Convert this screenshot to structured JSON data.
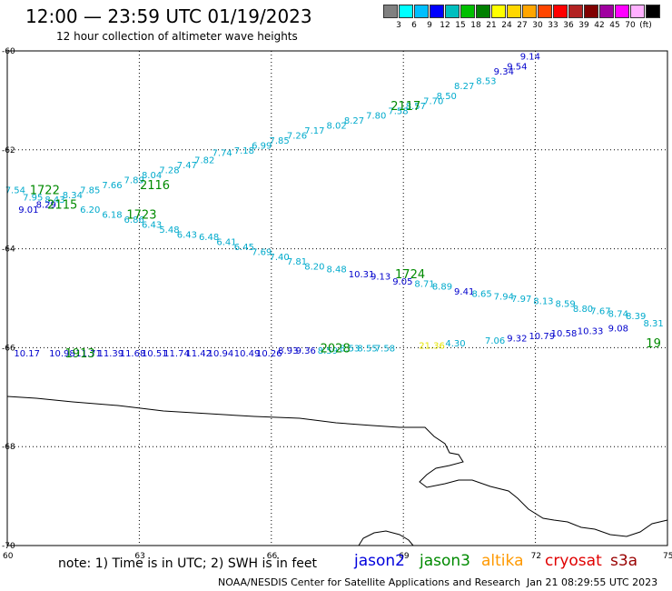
{
  "header": {
    "title": "12:00 — 23:59 UTC 01/19/2023",
    "subtitle": "12 hour collection of altimeter wave heights"
  },
  "scale": {
    "colors": [
      "#808080",
      "#00ffff",
      "#00bfff",
      "#0000ff",
      "#00bfbf",
      "#00c000",
      "#008000",
      "#ffff00",
      "#ffd700",
      "#ffa500",
      "#ff4500",
      "#ff0000",
      "#b22222",
      "#800000",
      "#a000a0",
      "#ff00ff",
      "#ffb0ff",
      "#000000"
    ],
    "labels": [
      "3",
      "6",
      "9",
      "12",
      "15",
      "18",
      "21",
      "24",
      "27",
      "30",
      "33",
      "36",
      "39",
      "42",
      "45",
      "70",
      "(ft)"
    ]
  },
  "axes": {
    "lat_labels": [
      "-60",
      "-62",
      "-64",
      "-66",
      "-68",
      "-70"
    ],
    "lon_labels": [
      "60",
      "63",
      "66",
      "69",
      "72",
      "75"
    ]
  },
  "track_labels": [
    {
      "text": "2117",
      "lon": 69.0,
      "lat": -61.1
    },
    {
      "text": "2116",
      "lon": 63.3,
      "lat": -62.7
    },
    {
      "text": "1722",
      "lon": 60.8,
      "lat": -62.8
    },
    {
      "text": "2115",
      "lon": 61.2,
      "lat": -63.1
    },
    {
      "text": "1723",
      "lon": 63.0,
      "lat": -63.3
    },
    {
      "text": "1724",
      "lon": 69.1,
      "lat": -64.5
    },
    {
      "text": "1913",
      "lon": 61.6,
      "lat": -66.1
    },
    {
      "text": "2028",
      "lon": 67.4,
      "lat": -66.0
    },
    {
      "text": "19",
      "lon": 74.8,
      "lat": -65.9
    }
  ],
  "swh_values": [
    {
      "text": "9.14",
      "lon": 71.9,
      "lat": -60.1,
      "c": "#0000cc"
    },
    {
      "text": "9.54",
      "lon": 71.6,
      "lat": -60.3,
      "c": "#0000cc"
    },
    {
      "text": "9.34",
      "lon": 71.3,
      "lat": -60.4,
      "c": "#0000cc"
    },
    {
      "text": "8.53",
      "lon": 70.9,
      "lat": -60.6,
      "c": "#00aacc"
    },
    {
      "text": "8.27",
      "lon": 70.4,
      "lat": -60.7,
      "c": "#00aacc"
    },
    {
      "text": "8.50",
      "lon": 70.0,
      "lat": -60.9,
      "c": "#00aacc"
    },
    {
      "text": "7.70",
      "lon": 69.7,
      "lat": -61.0,
      "c": "#00aacc"
    },
    {
      "text": "8.57",
      "lon": 69.3,
      "lat": -61.1,
      "c": "#00aacc"
    },
    {
      "text": "7.58",
      "lon": 68.9,
      "lat": -61.2,
      "c": "#00aacc"
    },
    {
      "text": "7.80",
      "lon": 68.4,
      "lat": -61.3,
      "c": "#00aacc"
    },
    {
      "text": "8.27",
      "lon": 67.9,
      "lat": -61.4,
      "c": "#00aacc"
    },
    {
      "text": "8.02",
      "lon": 67.5,
      "lat": -61.5,
      "c": "#00aacc"
    },
    {
      "text": "7.17",
      "lon": 67.0,
      "lat": -61.6,
      "c": "#00aacc"
    },
    {
      "text": "7.26",
      "lon": 66.6,
      "lat": -61.7,
      "c": "#00aacc"
    },
    {
      "text": "7.85",
      "lon": 66.2,
      "lat": -61.8,
      "c": "#00aacc"
    },
    {
      "text": "6.99",
      "lon": 65.8,
      "lat": -61.9,
      "c": "#00aacc"
    },
    {
      "text": "7.18",
      "lon": 65.4,
      "lat": -62.0,
      "c": "#00aacc"
    },
    {
      "text": "7.74",
      "lon": 64.9,
      "lat": -62.05,
      "c": "#00aacc"
    },
    {
      "text": "7.82",
      "lon": 64.5,
      "lat": -62.2,
      "c": "#00aacc"
    },
    {
      "text": "7.47",
      "lon": 64.1,
      "lat": -62.3,
      "c": "#00aacc"
    },
    {
      "text": "7.28",
      "lon": 63.7,
      "lat": -62.4,
      "c": "#00aacc"
    },
    {
      "text": "8.04",
      "lon": 63.3,
      "lat": -62.5,
      "c": "#00aacc"
    },
    {
      "text": "7.89",
      "lon": 62.9,
      "lat": -62.6,
      "c": "#00aacc"
    },
    {
      "text": "7.66",
      "lon": 62.4,
      "lat": -62.7,
      "c": "#00aacc"
    },
    {
      "text": "7.85",
      "lon": 61.9,
      "lat": -62.8,
      "c": "#00aacc"
    },
    {
      "text": "8.34",
      "lon": 61.5,
      "lat": -62.9,
      "c": "#00aacc"
    },
    {
      "text": "7.54",
      "lon": 60.2,
      "lat": -62.8,
      "c": "#00aacc"
    },
    {
      "text": "7.95",
      "lon": 60.6,
      "lat": -62.95,
      "c": "#00aacc"
    },
    {
      "text": "8.43",
      "lon": 61.1,
      "lat": -63.0,
      "c": "#00aacc"
    },
    {
      "text": "9.01",
      "lon": 60.5,
      "lat": -63.2,
      "c": "#0000cc"
    },
    {
      "text": "8.29",
      "lon": 60.9,
      "lat": -63.1,
      "c": "#0000cc"
    },
    {
      "text": "6.20",
      "lon": 61.9,
      "lat": -63.2,
      "c": "#00aacc"
    },
    {
      "text": "6.18",
      "lon": 62.4,
      "lat": -63.3,
      "c": "#00aacc"
    },
    {
      "text": "6.86",
      "lon": 62.9,
      "lat": -63.4,
      "c": "#00aacc"
    },
    {
      "text": "6.43",
      "lon": 63.3,
      "lat": -63.5,
      "c": "#00aacc"
    },
    {
      "text": "5.48",
      "lon": 63.7,
      "lat": -63.6,
      "c": "#00aacc"
    },
    {
      "text": "6.43",
      "lon": 64.1,
      "lat": -63.7,
      "c": "#00aacc"
    },
    {
      "text": "6.48",
      "lon": 64.6,
      "lat": -63.75,
      "c": "#00aacc"
    },
    {
      "text": "6.41",
      "lon": 65.0,
      "lat": -63.85,
      "c": "#00aacc"
    },
    {
      "text": "6.45",
      "lon": 65.4,
      "lat": -63.95,
      "c": "#00aacc"
    },
    {
      "text": "7.69",
      "lon": 65.8,
      "lat": -64.05,
      "c": "#00aacc"
    },
    {
      "text": "7.40",
      "lon": 66.2,
      "lat": -64.15,
      "c": "#00aacc"
    },
    {
      "text": "7.81",
      "lon": 66.6,
      "lat": -64.25,
      "c": "#00aacc"
    },
    {
      "text": "8.20",
      "lon": 67.0,
      "lat": -64.35,
      "c": "#00aacc"
    },
    {
      "text": "8.48",
      "lon": 67.5,
      "lat": -64.4,
      "c": "#00aacc"
    },
    {
      "text": "10.31",
      "lon": 68.0,
      "lat": -64.5,
      "c": "#0000cc"
    },
    {
      "text": "9.13",
      "lon": 68.5,
      "lat": -64.55,
      "c": "#0000cc"
    },
    {
      "text": "9.05",
      "lon": 69.0,
      "lat": -64.65,
      "c": "#0000cc"
    },
    {
      "text": "8.71",
      "lon": 69.5,
      "lat": -64.7,
      "c": "#00aacc"
    },
    {
      "text": "8.89",
      "lon": 69.9,
      "lat": -64.75,
      "c": "#00aacc"
    },
    {
      "text": "9.41",
      "lon": 70.4,
      "lat": -64.85,
      "c": "#0000cc"
    },
    {
      "text": "8.65",
      "lon": 70.8,
      "lat": -64.9,
      "c": "#00aacc"
    },
    {
      "text": "7.94",
      "lon": 71.3,
      "lat": -64.95,
      "c": "#00aacc"
    },
    {
      "text": "7.97",
      "lon": 71.7,
      "lat": -65.0,
      "c": "#00aacc"
    },
    {
      "text": "8.13",
      "lon": 72.2,
      "lat": -65.05,
      "c": "#00aacc"
    },
    {
      "text": "8.59",
      "lon": 72.7,
      "lat": -65.1,
      "c": "#00aacc"
    },
    {
      "text": "8.80",
      "lon": 73.1,
      "lat": -65.2,
      "c": "#00aacc"
    },
    {
      "text": "7.67",
      "lon": 73.5,
      "lat": -65.25,
      "c": "#00aacc"
    },
    {
      "text": "8.74",
      "lon": 73.9,
      "lat": -65.3,
      "c": "#00aacc"
    },
    {
      "text": "8.39",
      "lon": 74.3,
      "lat": -65.35,
      "c": "#00aacc"
    },
    {
      "text": "8.31",
      "lon": 74.7,
      "lat": -65.5,
      "c": "#00aacc"
    },
    {
      "text": "9.08",
      "lon": 73.9,
      "lat": -65.6,
      "c": "#0000cc"
    },
    {
      "text": "10.33",
      "lon": 73.2,
      "lat": -65.65,
      "c": "#0000cc"
    },
    {
      "text": "10.58",
      "lon": 72.6,
      "lat": -65.7,
      "c": "#0000cc"
    },
    {
      "text": "10.79",
      "lon": 72.1,
      "lat": -65.75,
      "c": "#0000cc"
    },
    {
      "text": "9.32",
      "lon": 71.6,
      "lat": -65.8,
      "c": "#0000cc"
    },
    {
      "text": "7.06",
      "lon": 71.1,
      "lat": -65.85,
      "c": "#00aacc"
    },
    {
      "text": "4.30",
      "lon": 70.2,
      "lat": -65.9,
      "c": "#00aacc"
    },
    {
      "text": "21.36",
      "lon": 69.6,
      "lat": -65.95,
      "c": "#e6e600"
    },
    {
      "text": "7.58",
      "lon": 68.6,
      "lat": -66.0,
      "c": "#00aacc"
    },
    {
      "text": "8.55",
      "lon": 68.2,
      "lat": -66.0,
      "c": "#00aacc"
    },
    {
      "text": "8.53",
      "lon": 67.8,
      "lat": -66.0,
      "c": "#00aacc"
    },
    {
      "text": "8.59",
      "lon": 67.3,
      "lat": -66.05,
      "c": "#00aacc"
    },
    {
      "text": "9.36",
      "lon": 66.8,
      "lat": -66.05,
      "c": "#0000cc"
    },
    {
      "text": "8.93",
      "lon": 66.4,
      "lat": -66.05,
      "c": "#0000cc"
    },
    {
      "text": "10.26",
      "lon": 65.9,
      "lat": -66.1,
      "c": "#0000cc"
    },
    {
      "text": "10.49",
      "lon": 65.4,
      "lat": -66.1,
      "c": "#0000cc"
    },
    {
      "text": "10.94",
      "lon": 64.8,
      "lat": -66.1,
      "c": "#0000cc"
    },
    {
      "text": "11.42",
      "lon": 64.3,
      "lat": -66.1,
      "c": "#0000cc"
    },
    {
      "text": "11.74",
      "lon": 63.8,
      "lat": -66.1,
      "c": "#0000cc"
    },
    {
      "text": "10.51",
      "lon": 63.3,
      "lat": -66.1,
      "c": "#0000cc"
    },
    {
      "text": "11.68",
      "lon": 62.8,
      "lat": -66.1,
      "c": "#0000cc"
    },
    {
      "text": "11.39",
      "lon": 62.3,
      "lat": -66.1,
      "c": "#0000cc"
    },
    {
      "text": "11.71",
      "lon": 61.8,
      "lat": -66.1,
      "c": "#0000cc"
    },
    {
      "text": "10.98",
      "lon": 61.2,
      "lat": -66.1,
      "c": "#0000cc"
    },
    {
      "text": "10.17",
      "lon": 60.4,
      "lat": -66.1,
      "c": "#0000cc"
    }
  ],
  "footer": {
    "note": "note: 1) Time is in UTC; 2) SWH is in feet",
    "satellites": [
      {
        "name": "jason2",
        "color": "#0000dd"
      },
      {
        "name": "jason3",
        "color": "#008a00"
      },
      {
        "name": "altika",
        "color": "#ff9900"
      },
      {
        "name": "cryosat",
        "color": "#e00000"
      },
      {
        "name": "s3a",
        "color": "#990000"
      }
    ],
    "credit": "NOAA/NESDIS Center for Satellite Applications and Research",
    "timestamp": "Jan 21 08:29:55 UTC 2023"
  }
}
